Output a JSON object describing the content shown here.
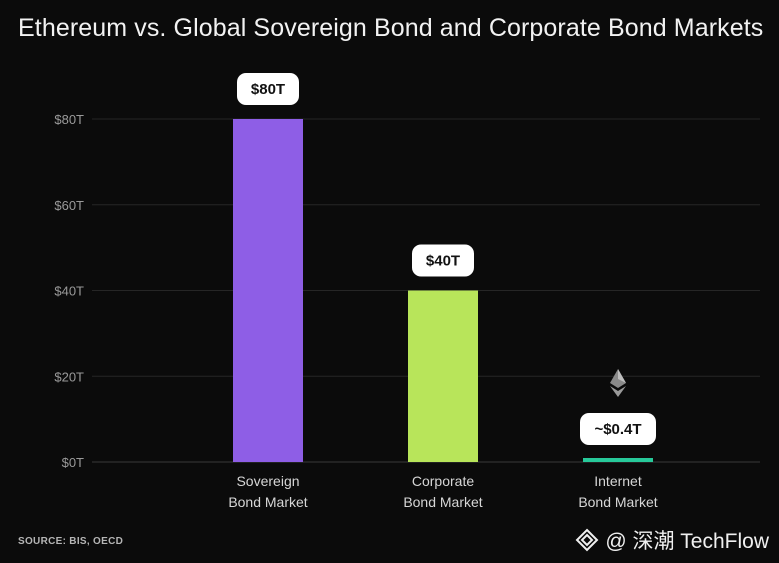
{
  "chart_data": {
    "type": "bar",
    "title": "Ethereum vs. Global Sovereign Bond and Corporate Bond Markets",
    "categories": [
      [
        "Sovereign",
        "Bond Market"
      ],
      [
        "Corporate",
        "Bond Market"
      ],
      [
        "Internet",
        "Bond Market"
      ]
    ],
    "values": [
      80,
      40,
      0.4
    ],
    "data_labels": [
      "$80T",
      "$40T",
      "~$0.4T"
    ],
    "colors": [
      "#8e5ee6",
      "#b8e55a",
      "#27c99a"
    ],
    "yticks": [
      0,
      20,
      40,
      60,
      80
    ],
    "ytick_labels": [
      "$0T",
      "$20T",
      "$40T",
      "$60T",
      "$80T"
    ],
    "ylim": [
      0,
      80
    ],
    "grid": true,
    "annotation_icon": "ethereum-icon"
  },
  "footer": {
    "source": "SOURCE: BIS, OECD"
  },
  "watermark": {
    "logo_icon": "techflow-logo-icon",
    "text": "@ 深潮 TechFlow"
  }
}
